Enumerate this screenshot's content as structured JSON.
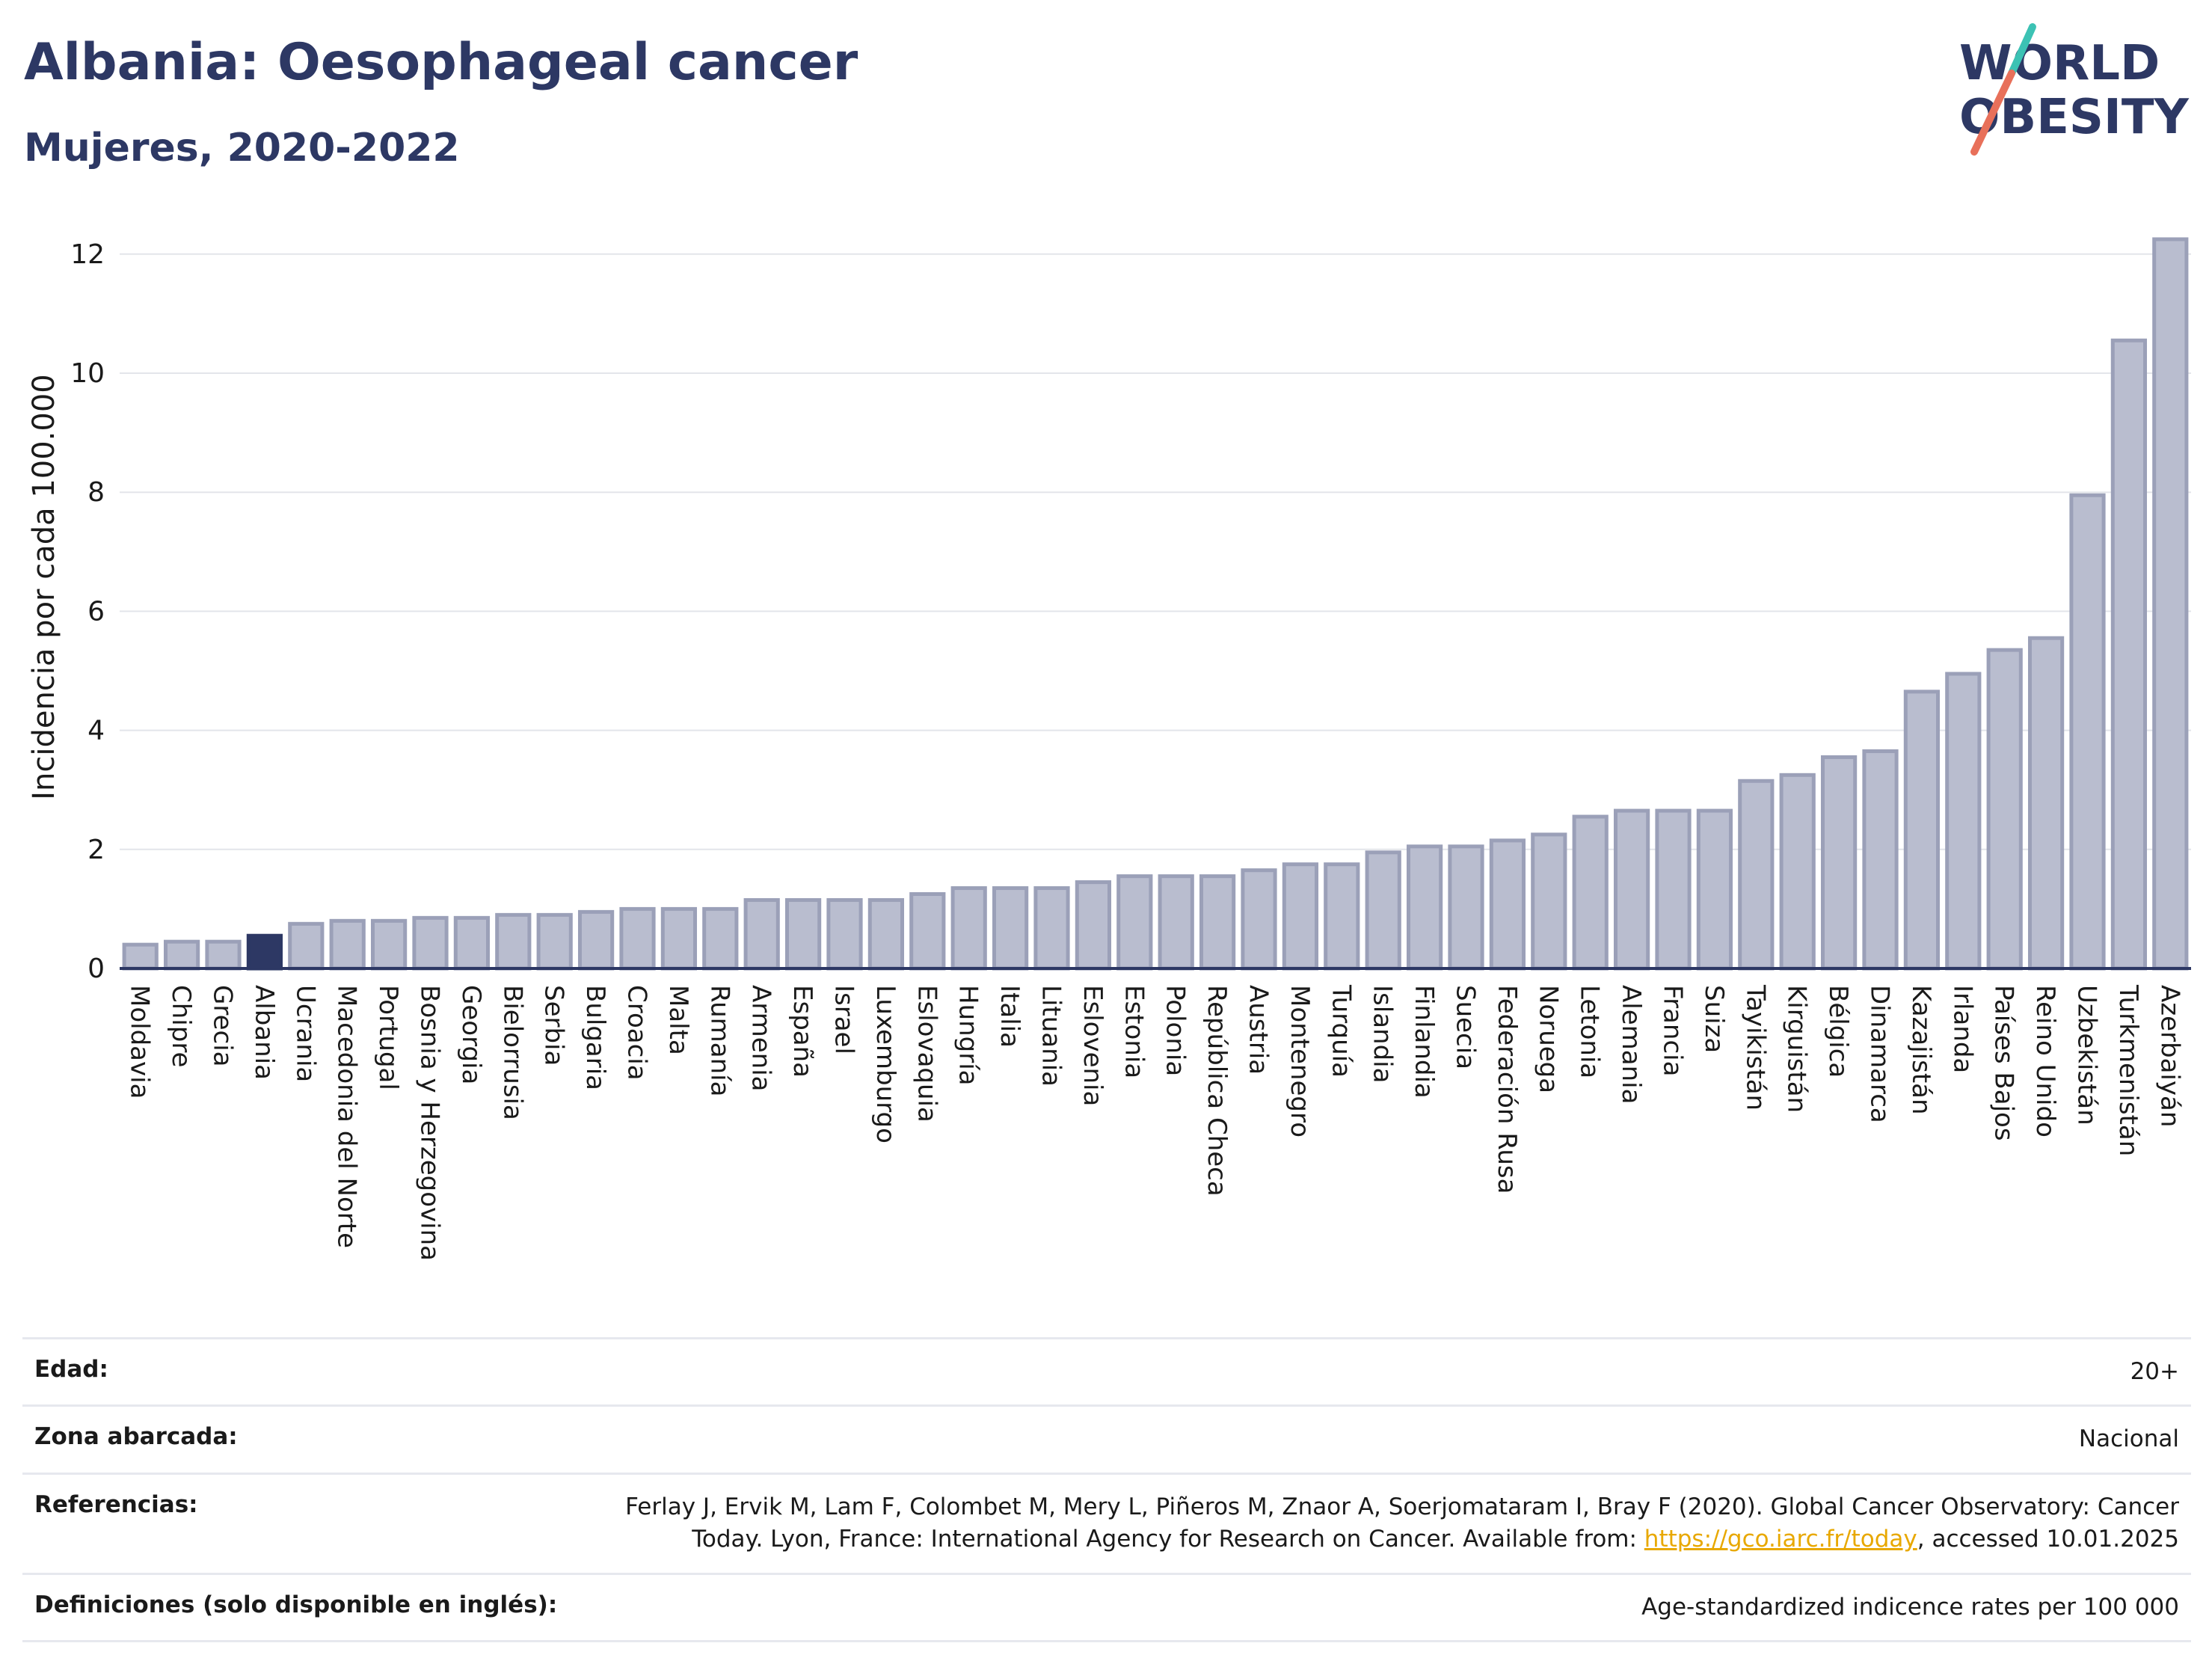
{
  "header": {
    "title": "Albania: Oesophageal cancer",
    "subtitle": "Mujeres, 2020-2022"
  },
  "logo": {
    "line1": "WORLD",
    "line2": "OBESITY"
  },
  "chart_data": {
    "type": "bar",
    "ylabel": "Incidencia por cada 100.000",
    "ylim": [
      0,
      12.5
    ],
    "yticks": [
      0,
      2,
      4,
      6,
      8,
      10,
      12
    ],
    "grid": true,
    "highlight": "Albania",
    "colors": {
      "bar": "#b9bdcf",
      "bar_edge": "#9ba0b8",
      "highlight": "#2d3864"
    },
    "categories": [
      "Moldavia",
      "Chipre",
      "Grecia",
      "Albania",
      "Ucrania",
      "Macedonia del Norte",
      "Portugal",
      "Bosnia y Herzegovina",
      "Georgia",
      "Bielorrusia",
      "Serbia",
      "Bulgaria",
      "Croacia",
      "Malta",
      "Rumanía",
      "Armenia",
      "España",
      "Israel",
      "Luxemburgo",
      "Eslovaquia",
      "Hungría",
      "Italia",
      "Lituania",
      "Eslovenia",
      "Estonia",
      "Polonia",
      "República Checa",
      "Austria",
      "Montenegro",
      "Turquía",
      "Islandia",
      "Finlandia",
      "Suecia",
      "Federación Rusa",
      "Noruega",
      "Letonia",
      "Alemania",
      "Francia",
      "Suiza",
      "Tayikistán",
      "Kirguistán",
      "Bélgica",
      "Dinamarca",
      "Kazajistán",
      "Irlanda",
      "Países Bajos",
      "Reino Unido",
      "Uzbekistán",
      "Turkmenistán",
      "Azerbaiyán"
    ],
    "values": [
      0.4,
      0.45,
      0.45,
      0.55,
      0.75,
      0.8,
      0.8,
      0.85,
      0.85,
      0.9,
      0.9,
      0.95,
      1.0,
      1.0,
      1.0,
      1.15,
      1.15,
      1.15,
      1.15,
      1.25,
      1.35,
      1.35,
      1.35,
      1.45,
      1.55,
      1.55,
      1.55,
      1.65,
      1.75,
      1.75,
      1.95,
      2.05,
      2.05,
      2.15,
      2.25,
      2.55,
      2.65,
      2.65,
      2.65,
      3.15,
      3.25,
      3.55,
      3.65,
      4.65,
      4.95,
      5.35,
      5.55,
      7.95,
      10.55,
      12.25
    ]
  },
  "info": {
    "age_label": "Edad:",
    "age_value": "20+",
    "area_label": "Zona abarcada:",
    "area_value": "Nacional",
    "refs_label": "Referencias:",
    "refs_text_1": "Ferlay J, Ervik M, Lam F, Colombet M, Mery L, Piñeros M, Znaor A, Soerjomataram I, Bray F (2020). Global Cancer Observatory: Cancer",
    "refs_text_2": "Today. Lyon, France: International Agency for Research on Cancer. Available from: ",
    "refs_link": "https://gco.iarc.fr/today",
    "refs_text_3": ", accessed 10.01.2025",
    "defs_label": "Definiciones (solo disponible en inglés):",
    "defs_value": "Age-standardized indicence rates per 100 000"
  }
}
